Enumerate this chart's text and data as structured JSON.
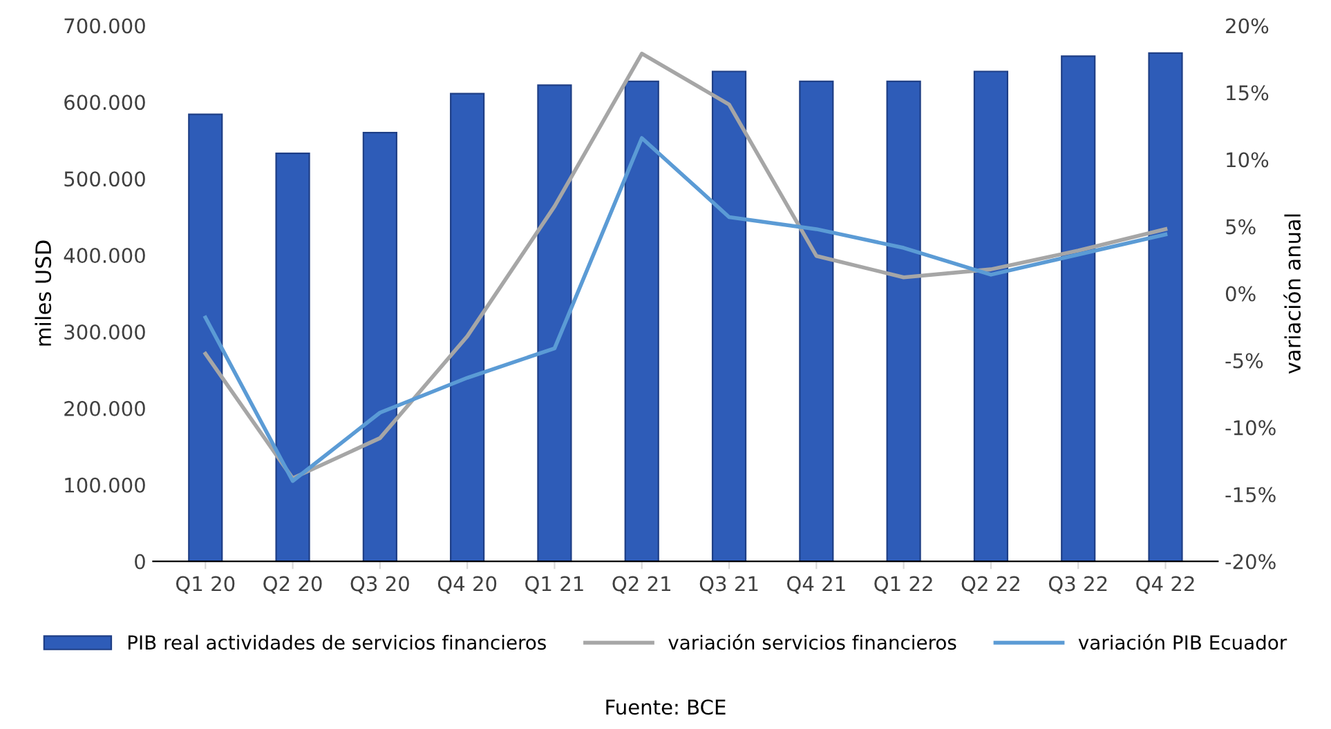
{
  "chart_data": {
    "type": "bar",
    "categories": [
      "Q1 20",
      "Q2 20",
      "Q3 20",
      "Q4 20",
      "Q1 21",
      "Q2 21",
      "Q3 21",
      "Q4 21",
      "Q1 22",
      "Q2 22",
      "Q3 22",
      "Q4 22"
    ],
    "ylabel": "miles USD",
    "y2label": "variación anual",
    "ylim": [
      0,
      700000
    ],
    "yticks": [
      {
        "value": 0,
        "label": "0"
      },
      {
        "value": 100000,
        "label": "100.000"
      },
      {
        "value": 200000,
        "label": "200.000"
      },
      {
        "value": 300000,
        "label": "300.000"
      },
      {
        "value": 400000,
        "label": "400.000"
      },
      {
        "value": 500000,
        "label": "500.000"
      },
      {
        "value": 600000,
        "label": "600.000"
      },
      {
        "value": 700000,
        "label": "700.000"
      }
    ],
    "y2lim": [
      -20,
      20
    ],
    "y2ticks": [
      {
        "value": -20,
        "label": "-20%"
      },
      {
        "value": -15,
        "label": "-15%"
      },
      {
        "value": -10,
        "label": "-10%"
      },
      {
        "value": -5,
        "label": "-5%"
      },
      {
        "value": 0,
        "label": "0%"
      },
      {
        "value": 5,
        "label": "5%"
      },
      {
        "value": 10,
        "label": "10%"
      },
      {
        "value": 15,
        "label": "15%"
      },
      {
        "value": 20,
        "label": "20%"
      }
    ],
    "series": [
      {
        "name": "PIB real actividades de servicios financieros",
        "color": "#2e5cb8",
        "values": [
          584000,
          533000,
          560000,
          611000,
          622000,
          627000,
          640000,
          627000,
          627000,
          640000,
          660000,
          664000
        ]
      },
      {
        "name": "variación servicios financieros",
        "type": "line",
        "axis": "y2",
        "color": "#a6a6a6",
        "values": [
          -4.5,
          -13.8,
          -10.8,
          -3.2,
          6.5,
          17.9,
          14.1,
          2.8,
          1.2,
          1.8,
          3.2,
          4.8
        ]
      },
      {
        "name": "variación PIB Ecuador",
        "type": "line",
        "axis": "y2",
        "color": "#5b9bd5",
        "values": [
          -1.8,
          -14.0,
          -8.9,
          -6.3,
          -4.1,
          11.6,
          5.7,
          4.8,
          3.4,
          1.4,
          2.9,
          4.4
        ]
      }
    ],
    "legend": "bottom",
    "grid": false,
    "marker": "none",
    "line_style": "solid",
    "annotations": [
      "Fuente: BCE"
    ]
  }
}
